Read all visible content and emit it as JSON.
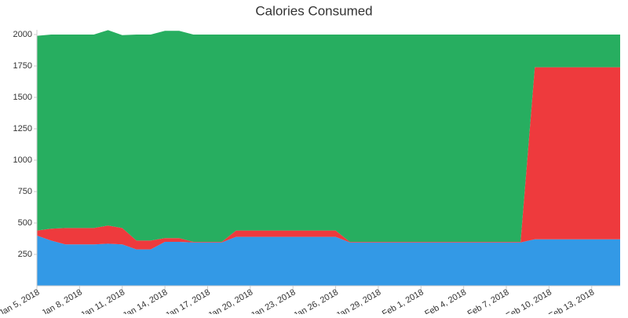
{
  "chart_data": {
    "type": "area",
    "stacked": true,
    "title": "Calories Consumed",
    "categories": [
      "Jan 5, 2018",
      null,
      null,
      "Jan 8, 2018",
      null,
      null,
      "Jan 11, 2018",
      null,
      null,
      "Jan 14, 2018",
      null,
      null,
      "Jan 17, 2018",
      null,
      null,
      "Jan 20, 2018",
      null,
      null,
      "Jan 23, 2018",
      null,
      null,
      "Jan 26, 2018",
      null,
      null,
      "Jan 29, 2018",
      null,
      null,
      "Feb 1, 2018",
      null,
      null,
      "Feb 4, 2018",
      null,
      null,
      "Feb 7, 2018",
      null,
      null,
      "Feb 10, 2018",
      null,
      null,
      "Feb 13, 2018",
      null,
      null
    ],
    "series": [
      {
        "color": "#3399e6",
        "values": [
          400,
          360,
          330,
          330,
          330,
          335,
          330,
          290,
          290,
          350,
          350,
          345,
          345,
          345,
          390,
          390,
          390,
          390,
          390,
          390,
          390,
          390,
          345,
          345,
          345,
          345,
          345,
          345,
          345,
          345,
          345,
          345,
          345,
          345,
          345,
          370,
          370,
          370,
          370,
          370,
          370,
          370
        ]
      },
      {
        "color": "#ee3a3d",
        "values": [
          40,
          95,
          130,
          130,
          130,
          145,
          130,
          70,
          70,
          30,
          30,
          5,
          5,
          5,
          50,
          50,
          50,
          50,
          50,
          50,
          50,
          50,
          5,
          5,
          5,
          5,
          5,
          5,
          5,
          5,
          5,
          5,
          5,
          5,
          5,
          1370,
          1370,
          1370,
          1370,
          1370,
          1370,
          1370
        ]
      },
      {
        "color": "#27ae60",
        "values": [
          1550,
          1545,
          1540,
          1540,
          1540,
          1555,
          1535,
          1640,
          1640,
          1650,
          1650,
          1650,
          1650,
          1650,
          1560,
          1560,
          1560,
          1560,
          1560,
          1560,
          1560,
          1560,
          1650,
          1650,
          1650,
          1650,
          1650,
          1650,
          1650,
          1650,
          1650,
          1650,
          1650,
          1650,
          1650,
          260,
          260,
          260,
          260,
          260,
          260,
          260
        ]
      }
    ],
    "ylim": [
      0,
      2000
    ],
    "yticks": [
      250,
      500,
      750,
      1000,
      1250,
      1500,
      1750,
      2000
    ],
    "grid": false
  }
}
